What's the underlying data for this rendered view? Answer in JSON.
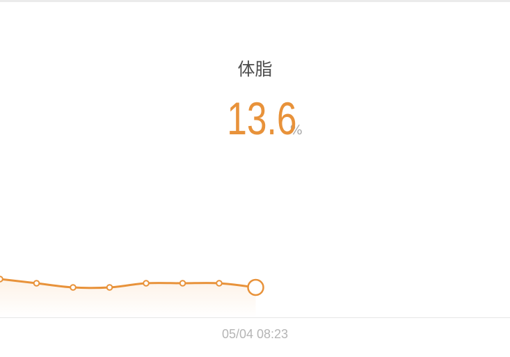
{
  "metric": {
    "label": "体脂",
    "value": "13.6",
    "unit": "%"
  },
  "timestamp": "05/04 08:23",
  "colors": {
    "accent": "#e8923a",
    "fill": "#fdf2e7",
    "label": "#4d4d4d",
    "muted": "#b5b5b5"
  },
  "chart_data": {
    "type": "line",
    "series": [
      {
        "values": [
          14.0,
          13.8,
          13.6,
          13.6,
          13.8,
          13.8,
          13.8,
          13.6
        ]
      }
    ],
    "selected_index": 7,
    "ylim": [
      13.0,
      15.0
    ],
    "grid": false,
    "legend": "none"
  }
}
